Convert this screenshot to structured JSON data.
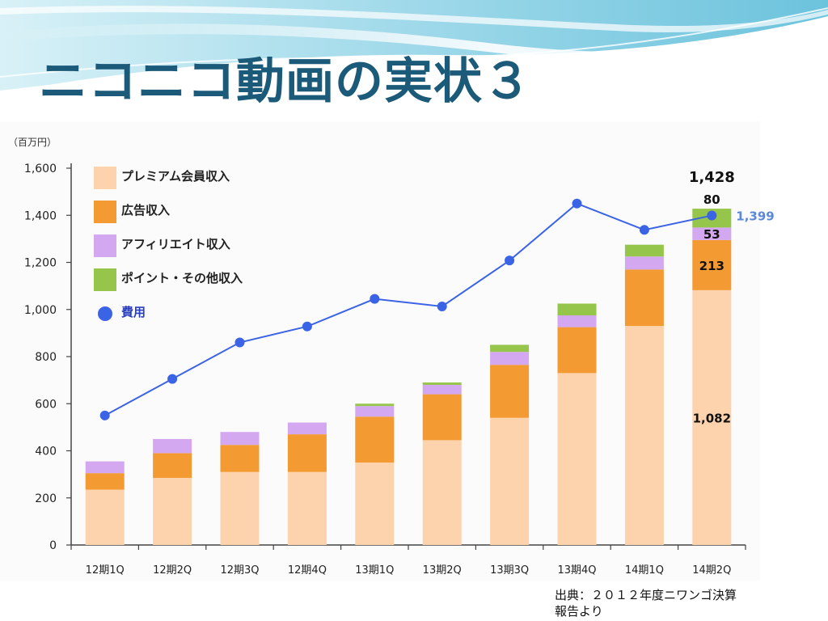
{
  "slide": {
    "title": "ニコニコ動画の実状３",
    "source_line1": "出典：２０１２年度ニワンゴ決算",
    "source_line2": "報告より"
  },
  "colors": {
    "premium": "#fdd3ad",
    "ads": "#f39a33",
    "affiliate": "#d3a8f0",
    "points": "#95c54a",
    "cost": "#3b63e6",
    "title": "#1b5a78"
  },
  "chart_data": {
    "type": "bar",
    "stacked": true,
    "unit_label": "（百万円）",
    "categories": [
      "12期1Q",
      "12期2Q",
      "12期3Q",
      "12期4Q",
      "13期1Q",
      "13期2Q",
      "13期3Q",
      "13期4Q",
      "14期1Q",
      "14期2Q"
    ],
    "ylim": [
      0,
      1600
    ],
    "yticks": [
      "0",
      "200",
      "400",
      "600",
      "800",
      "1,000",
      "1,200",
      "1,400",
      "1,600"
    ],
    "series": [
      {
        "name": "プレミアム会員収入",
        "color": "#fdd3ad",
        "values": [
          235,
          285,
          310,
          310,
          350,
          445,
          540,
          730,
          930,
          1082
        ]
      },
      {
        "name": "広告収入",
        "color": "#f39a33",
        "values": [
          70,
          105,
          115,
          160,
          195,
          195,
          225,
          195,
          240,
          213
        ]
      },
      {
        "name": "アフィリエイト収入",
        "color": "#d3a8f0",
        "values": [
          50,
          60,
          55,
          50,
          45,
          40,
          55,
          50,
          55,
          53
        ]
      },
      {
        "name": "ポイント・その他収入",
        "color": "#95c54a",
        "values": [
          0,
          0,
          0,
          0,
          10,
          10,
          30,
          50,
          50,
          80
        ]
      }
    ],
    "line": {
      "name": "費用",
      "color": "#3b63e6",
      "values": [
        550,
        705,
        860,
        928,
        1045,
        1013,
        1208,
        1450,
        1338,
        1399
      ]
    },
    "annotations": {
      "total": "1,428",
      "premium": "1,082",
      "ads": "213",
      "affiliate": "53",
      "points": "80",
      "cost": "1,399"
    },
    "grid": false,
    "legend_position": "top-left"
  }
}
